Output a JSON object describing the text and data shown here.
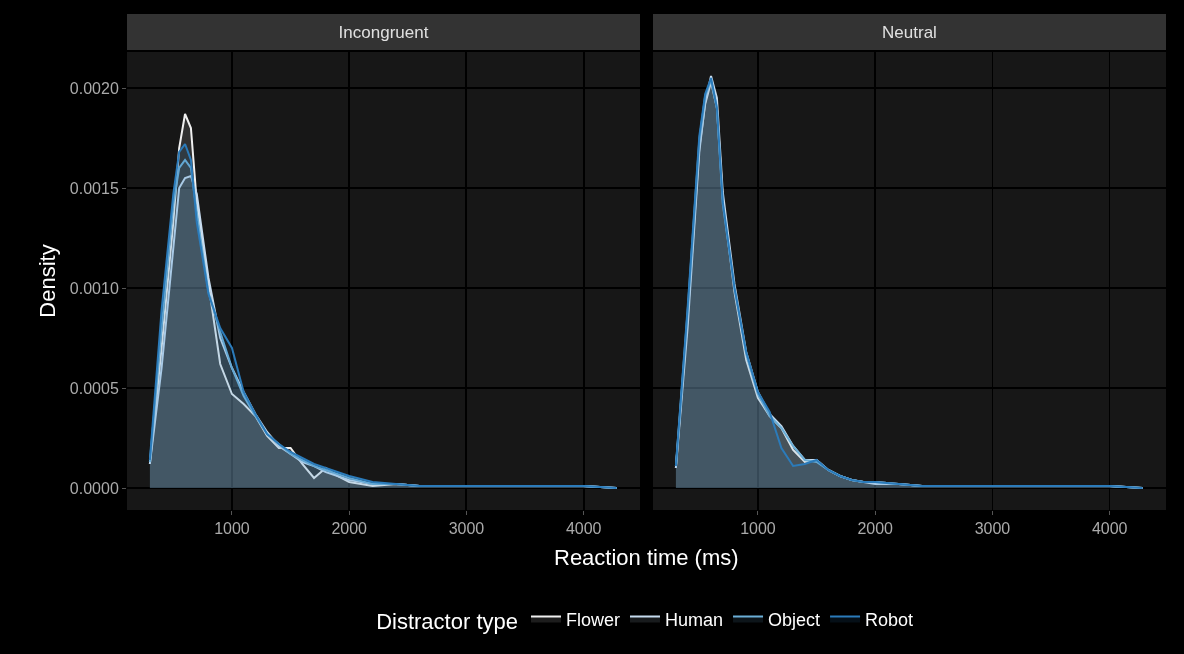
{
  "chart_data": [
    {
      "type": "area",
      "title": "Incongruent",
      "xlabel": "Reaction time (ms)",
      "ylabel": "Density",
      "legend_title": "Distractor type",
      "legend": "bottom",
      "grid": true,
      "xlim": [
        105,
        4480
      ],
      "xticks": [
        1000,
        2000,
        3000,
        4000
      ],
      "ylim": [
        -0.00011,
        0.00218
      ],
      "yticks": [
        {
          "value": 0,
          "label": "0.0000"
        },
        {
          "value": 0.0005,
          "label": "0.0005"
        },
        {
          "value": 0.001,
          "label": "0.0010"
        },
        {
          "value": 0.0015,
          "label": "0.0015"
        },
        {
          "value": 0.002,
          "label": "0.0020"
        }
      ],
      "x": [
        300,
        400,
        500,
        550,
        600,
        650,
        700,
        800,
        900,
        1000,
        1100,
        1200,
        1300,
        1400,
        1500,
        1600,
        1700,
        1800,
        1900,
        2000,
        2200,
        2400,
        2600,
        3000,
        3500,
        4000,
        4280
      ],
      "series": [
        {
          "name": "Flower",
          "color": "#f0f0f0",
          "values": [
            0.00012,
            0.0007,
            0.00133,
            0.0017,
            0.00187,
            0.0018,
            0.00143,
            0.00102,
            0.00062,
            0.00047,
            0.00042,
            0.00036,
            0.00026,
            0.0002,
            0.0002,
            0.00012,
            5e-05,
            0.0001,
            6e-05,
            3e-05,
            1e-05,
            2e-05,
            1e-05,
            1e-05,
            1e-05,
            1e-05,
            0
          ]
        },
        {
          "name": "Human",
          "color": "#c6dbef",
          "values": [
            0.00012,
            0.0006,
            0.0012,
            0.0015,
            0.00155,
            0.00156,
            0.00147,
            0.00105,
            0.00075,
            0.0006,
            0.00048,
            0.00037,
            0.00028,
            0.00021,
            0.00017,
            0.00013,
            0.00011,
            8e-05,
            6e-05,
            4e-05,
            2e-05,
            2e-05,
            1e-05,
            1e-05,
            1e-05,
            1e-05,
            0
          ]
        },
        {
          "name": "Object",
          "color": "#6baed6",
          "values": [
            0.00013,
            0.0008,
            0.00142,
            0.0016,
            0.00164,
            0.0016,
            0.00138,
            0.00098,
            0.00078,
            0.0006,
            0.00046,
            0.00036,
            0.00027,
            0.00022,
            0.00017,
            0.00014,
            0.00011,
            9e-05,
            7e-05,
            5e-05,
            2e-05,
            2e-05,
            1e-05,
            1e-05,
            1e-05,
            1e-05,
            0
          ]
        },
        {
          "name": "Robot",
          "color": "#2b7bba",
          "values": [
            0.00014,
            0.00089,
            0.00147,
            0.00168,
            0.00172,
            0.00164,
            0.00133,
            0.00097,
            0.0008,
            0.0007,
            0.00048,
            0.00037,
            0.00027,
            0.00022,
            0.00018,
            0.00015,
            0.00012,
            0.0001,
            8e-05,
            6e-05,
            3e-05,
            2e-05,
            1e-05,
            1e-05,
            1e-05,
            1e-05,
            0
          ]
        }
      ]
    },
    {
      "type": "area",
      "title": "Neutral",
      "grid": true,
      "tick_labels": "x",
      "xlim": [
        105,
        4480
      ],
      "xticks": [
        1000,
        2000,
        3000,
        4000
      ],
      "ylim": [
        -0.00011,
        0.00218
      ],
      "yticks": [
        0,
        0.0005,
        0.001,
        0.0015,
        0.002
      ],
      "x": [
        300,
        400,
        500,
        550,
        600,
        650,
        700,
        800,
        900,
        1000,
        1100,
        1200,
        1300,
        1400,
        1500,
        1600,
        1700,
        1800,
        1900,
        2000,
        2200,
        2400,
        2600,
        3000,
        3500,
        4000,
        4280
      ],
      "series": [
        {
          "color": "#f0f0f0",
          "values": [
            0.0001,
            0.00085,
            0.0017,
            0.00192,
            0.00203,
            0.0019,
            0.00145,
            0.00098,
            0.00064,
            0.00045,
            0.00036,
            0.0003,
            0.00019,
            0.00013,
            0.00014,
            9e-05,
            6e-05,
            4e-05,
            3e-05,
            3e-05,
            2e-05,
            1e-05,
            1e-05,
            1e-05,
            1e-05,
            1e-05,
            0
          ]
        },
        {
          "color": "#c6dbef",
          "values": [
            0.0001,
            0.0008,
            0.00168,
            0.00193,
            0.00206,
            0.00195,
            0.00148,
            0.00102,
            0.00068,
            0.00048,
            0.00037,
            0.00031,
            0.00021,
            0.00014,
            0.00014,
            9e-05,
            6e-05,
            4e-05,
            3e-05,
            2e-05,
            2e-05,
            1e-05,
            1e-05,
            1e-05,
            1e-05,
            1e-05,
            0
          ]
        },
        {
          "color": "#6baed6",
          "values": [
            0.00011,
            0.00088,
            0.00174,
            0.00196,
            0.00204,
            0.0019,
            0.00142,
            0.001,
            0.00067,
            0.00047,
            0.00036,
            0.0003,
            0.00021,
            0.00014,
            0.00013,
            9e-05,
            6e-05,
            4e-05,
            3e-05,
            3e-05,
            2e-05,
            1e-05,
            1e-05,
            1e-05,
            1e-05,
            1e-05,
            0
          ]
        },
        {
          "color": "#2b7bba",
          "values": [
            0.00011,
            0.0009,
            0.00176,
            0.00197,
            0.00205,
            0.0019,
            0.00143,
            0.001,
            0.00068,
            0.00048,
            0.00038,
            0.0002,
            0.00011,
            0.00012,
            0.00014,
            9e-05,
            6e-05,
            4e-05,
            3e-05,
            3e-05,
            2e-05,
            1e-05,
            1e-05,
            1e-05,
            1e-05,
            1e-05,
            0
          ]
        }
      ]
    }
  ]
}
